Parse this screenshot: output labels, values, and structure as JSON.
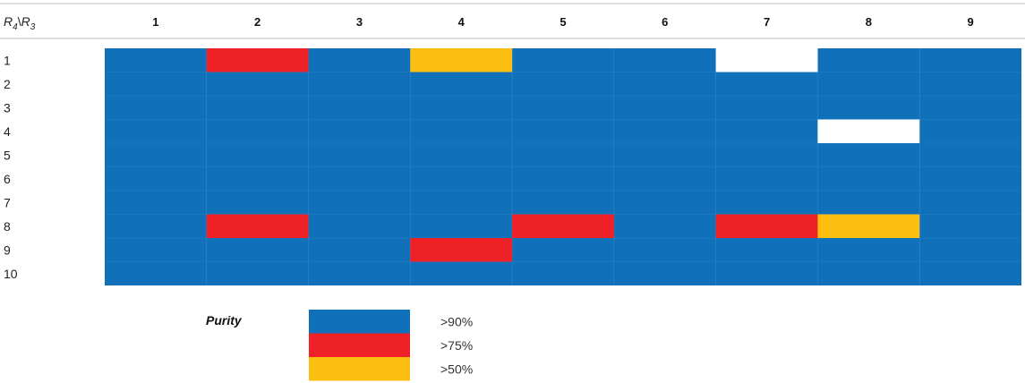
{
  "chart_data": {
    "type": "heatmap",
    "corner_label": {
      "row_var": "R",
      "row_sub": "4",
      "sep": "\\",
      "col_var": "R",
      "col_sub": "3"
    },
    "columns": [
      "1",
      "2",
      "3",
      "4",
      "5",
      "6",
      "7",
      "8",
      "9"
    ],
    "rows": [
      "1",
      "2",
      "3",
      "4",
      "5",
      "6",
      "7",
      "8",
      "9",
      "10"
    ],
    "cells": [
      [
        ">90%",
        ">75%",
        ">90%",
        ">50%",
        ">90%",
        ">90%",
        "",
        ">90%",
        ">90%"
      ],
      [
        ">90%",
        ">90%",
        ">90%",
        ">90%",
        ">90%",
        ">90%",
        ">90%",
        ">90%",
        ">90%"
      ],
      [
        ">90%",
        ">90%",
        ">90%",
        ">90%",
        ">90%",
        ">90%",
        ">90%",
        ">90%",
        ">90%"
      ],
      [
        ">90%",
        ">90%",
        ">90%",
        ">90%",
        ">90%",
        ">90%",
        ">90%",
        "",
        ">90%"
      ],
      [
        ">90%",
        ">90%",
        ">90%",
        ">90%",
        ">90%",
        ">90%",
        ">90%",
        ">90%",
        ">90%"
      ],
      [
        ">90%",
        ">90%",
        ">90%",
        ">90%",
        ">90%",
        ">90%",
        ">90%",
        ">90%",
        ">90%"
      ],
      [
        ">90%",
        ">90%",
        ">90%",
        ">90%",
        ">90%",
        ">90%",
        ">90%",
        ">90%",
        ">90%"
      ],
      [
        ">90%",
        ">75%",
        ">90%",
        ">90%",
        ">75%",
        ">90%",
        ">75%",
        ">50%",
        ">90%"
      ],
      [
        ">90%",
        ">90%",
        ">90%",
        ">75%",
        ">90%",
        ">90%",
        ">90%",
        ">90%",
        ">90%"
      ],
      [
        ">90%",
        ">90%",
        ">90%",
        ">90%",
        ">90%",
        ">90%",
        ">90%",
        ">90%",
        ">90%"
      ]
    ],
    "legend": {
      "title": "Purity",
      "placement": "bottom-left",
      "items": [
        {
          "label": ">90%",
          "color": "#1070BA"
        },
        {
          "label": ">75%",
          "color": "#EE2127"
        },
        {
          "label": ">50%",
          "color": "#FDBE12"
        }
      ]
    },
    "empty_color": "#FFFFFF",
    "grid_color": "#2A82C8"
  }
}
